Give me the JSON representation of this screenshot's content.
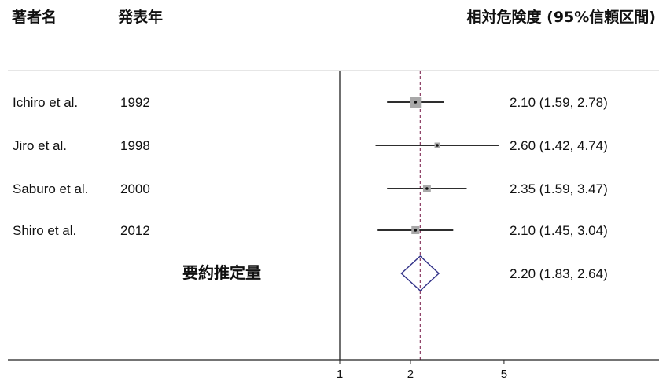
{
  "chart_data": {
    "type": "scatter",
    "columns": {
      "author": "著者名",
      "year": "発表年",
      "estimate": "相対危険度 (95%信頼区間)"
    },
    "studies": [
      {
        "author": "Ichiro et al.",
        "year": "1992",
        "estimate": 2.1,
        "ci_low": 1.59,
        "ci_high": 2.78,
        "label": "2.10 (1.59, 2.78)",
        "weight": 0.44
      },
      {
        "author": "Jiro et al.",
        "year": "1998",
        "estimate": 2.6,
        "ci_low": 1.42,
        "ci_high": 4.74,
        "label": "2.60 (1.42, 4.74)",
        "weight": 0.11
      },
      {
        "author": "Saburo et al.",
        "year": "2000",
        "estimate": 2.35,
        "ci_low": 1.59,
        "ci_high": 3.47,
        "label": "2.35 (1.59, 3.47)",
        "weight": 0.22
      },
      {
        "author": "Shiro et al.",
        "year": "2012",
        "estimate": 2.1,
        "ci_low": 1.45,
        "ci_high": 3.04,
        "label": "2.10 (1.45, 3.04)",
        "weight": 0.23
      }
    ],
    "summary": {
      "label": "要約推定量",
      "estimate": 2.2,
      "ci_low": 1.83,
      "ci_high": 2.64,
      "text": "2.20 (1.83, 2.64)"
    },
    "xscale": "log",
    "xticks": [
      1,
      2,
      5
    ],
    "xtick_labels": [
      "1",
      "2",
      "5"
    ],
    "reference_value": 1,
    "grid": false
  },
  "colors": {
    "box": "#a8a8a8",
    "point": "#111111",
    "ci": "#111111",
    "summary_line": "#8a3a62",
    "diamond": "#34348a",
    "axis": "#222222",
    "separator": "#cccccc"
  }
}
